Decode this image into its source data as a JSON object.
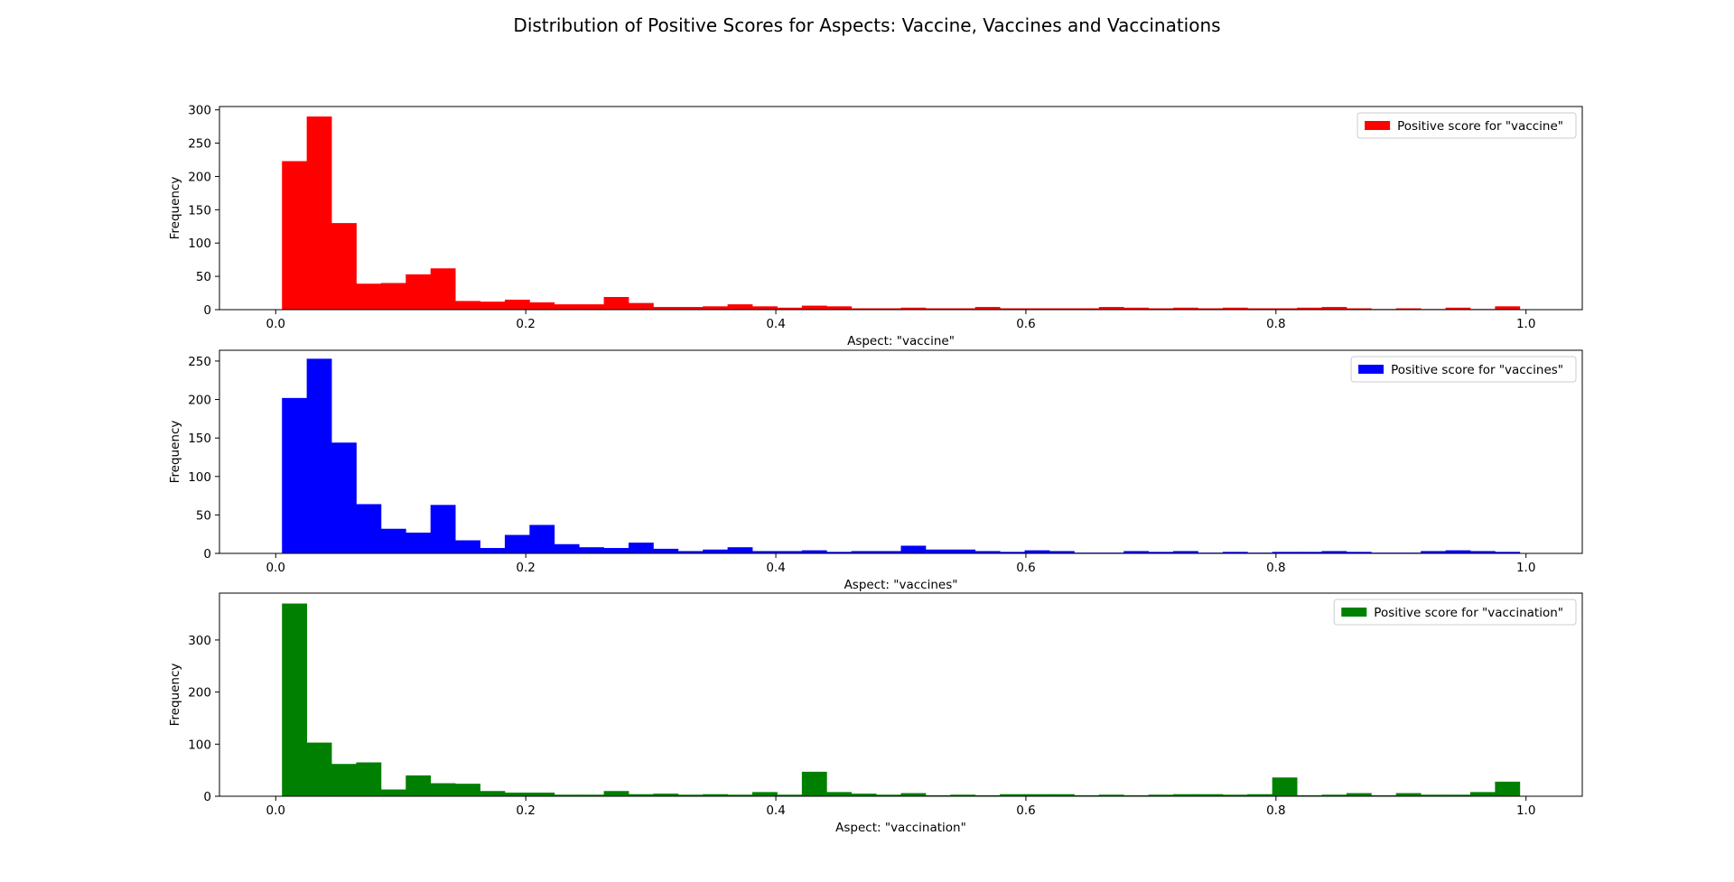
{
  "figure": {
    "title": "Distribution of Positive Scores for Aspects: Vaccine, Vaccines and Vaccinations"
  },
  "chart_data": [
    {
      "type": "bar",
      "histogram": true,
      "series_name": "Positive score for \"vaccine\"",
      "color": "#ff0000",
      "xlabel": "Aspect: \"vaccine\"",
      "ylabel": "Frequency",
      "xlim": [
        -0.045,
        1.045
      ],
      "ylim": [
        0,
        305
      ],
      "xticks": [
        0.0,
        0.2,
        0.4,
        0.6,
        0.8,
        1.0
      ],
      "xtick_labels": [
        "0.0",
        "0.2",
        "0.4",
        "0.6",
        "0.8",
        "1.0"
      ],
      "yticks": [
        0,
        50,
        100,
        150,
        200,
        250,
        300
      ],
      "ytick_labels": [
        "0",
        "50",
        "100",
        "150",
        "200",
        "250",
        "300"
      ],
      "legend": "upper-right",
      "bin_start": 0.005,
      "bin_width": 0.0198,
      "values": [
        223,
        290,
        130,
        39,
        40,
        53,
        62,
        13,
        12,
        15,
        11,
        8,
        8,
        19,
        10,
        4,
        4,
        5,
        8,
        5,
        3,
        6,
        5,
        2,
        2,
        3,
        2,
        2,
        4,
        2,
        2,
        2,
        2,
        4,
        3,
        2,
        3,
        2,
        3,
        2,
        2,
        3,
        4,
        2,
        1,
        2,
        1,
        3,
        1,
        5
      ]
    },
    {
      "type": "bar",
      "histogram": true,
      "series_name": "Positive score for \"vaccines\"",
      "color": "#0000ff",
      "xlabel": "Aspect: \"vaccines\"",
      "ylabel": "Frequency",
      "xlim": [
        -0.045,
        1.045
      ],
      "ylim": [
        0,
        264
      ],
      "xticks": [
        0.0,
        0.2,
        0.4,
        0.6,
        0.8,
        1.0
      ],
      "xtick_labels": [
        "0.0",
        "0.2",
        "0.4",
        "0.6",
        "0.8",
        "1.0"
      ],
      "yticks": [
        0,
        50,
        100,
        150,
        200,
        250
      ],
      "ytick_labels": [
        "0",
        "50",
        "100",
        "150",
        "200",
        "250"
      ],
      "legend": "upper-right",
      "bin_start": 0.005,
      "bin_width": 0.0198,
      "values": [
        202,
        253,
        144,
        64,
        32,
        27,
        63,
        17,
        7,
        24,
        37,
        12,
        8,
        7,
        14,
        6,
        3,
        5,
        8,
        3,
        3,
        4,
        2,
        3,
        3,
        10,
        5,
        5,
        3,
        2,
        4,
        3,
        1,
        1,
        3,
        2,
        3,
        1,
        2,
        1,
        2,
        2,
        3,
        2,
        1,
        1,
        3,
        4,
        3,
        2
      ]
    },
    {
      "type": "bar",
      "histogram": true,
      "series_name": "Positive score for \"vaccination\"",
      "color": "#008000",
      "xlabel": "Aspect: \"vaccination\"",
      "ylabel": "Frequency",
      "xlim": [
        -0.045,
        1.045
      ],
      "ylim": [
        0,
        390
      ],
      "xticks": [
        0.0,
        0.2,
        0.4,
        0.6,
        0.8,
        1.0
      ],
      "xtick_labels": [
        "0.0",
        "0.2",
        "0.4",
        "0.6",
        "0.8",
        "1.0"
      ],
      "yticks": [
        0,
        100,
        200,
        300
      ],
      "ytick_labels": [
        "0",
        "100",
        "200",
        "300"
      ],
      "legend": "upper-right",
      "bin_start": 0.005,
      "bin_width": 0.0198,
      "values": [
        370,
        103,
        62,
        65,
        13,
        40,
        25,
        24,
        10,
        7,
        7,
        3,
        3,
        10,
        4,
        5,
        3,
        4,
        3,
        8,
        3,
        47,
        8,
        5,
        3,
        6,
        2,
        3,
        2,
        4,
        4,
        4,
        2,
        3,
        2,
        3,
        4,
        4,
        3,
        4,
        36,
        2,
        3,
        6,
        2,
        6,
        3,
        3,
        8,
        28
      ]
    }
  ]
}
